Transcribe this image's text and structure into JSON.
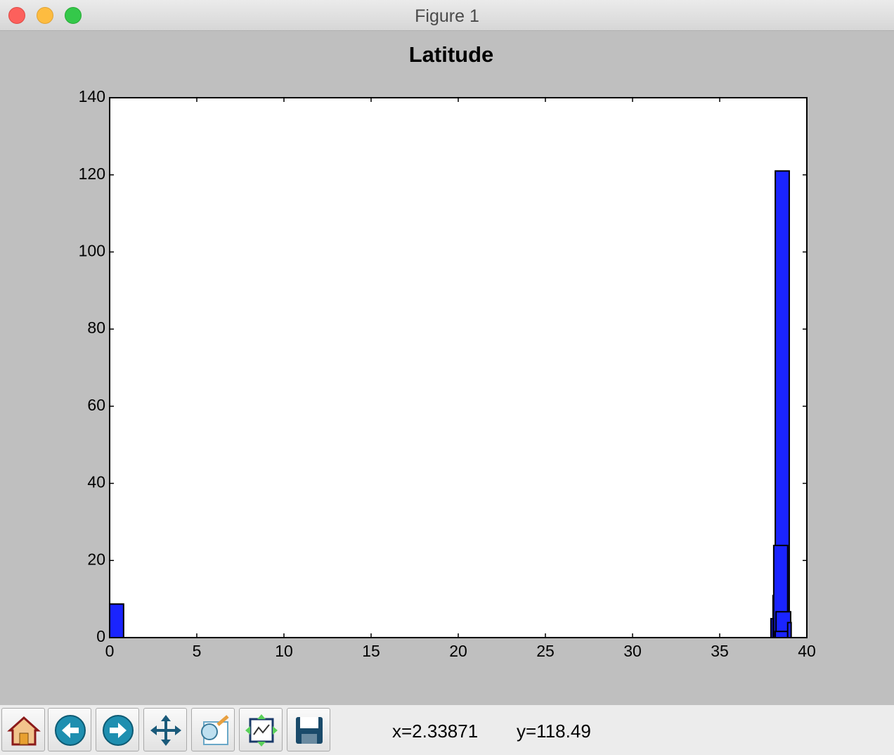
{
  "window": {
    "title": "Figure 1"
  },
  "chart_data": {
    "type": "histogram",
    "title": "Latitude",
    "color": "#1a24ff",
    "xlim": [
      0,
      40
    ],
    "ylim": [
      0,
      140
    ],
    "xticks": [
      0,
      5,
      10,
      15,
      20,
      25,
      30,
      35,
      40
    ],
    "yticks": [
      0,
      20,
      40,
      60,
      80,
      100,
      120,
      140
    ],
    "series": [
      {
        "bins": [
          0,
          0.8
        ],
        "values": [
          8.7
        ]
      },
      {
        "bins": [
          37.94,
          38.15
        ],
        "values": [
          4.9
        ]
      },
      {
        "bins": [
          38.06,
          38.2
        ],
        "values": [
          10.9
        ]
      },
      {
        "bins": [
          38.19,
          38.99
        ],
        "values": [
          121
        ]
      },
      {
        "bins": [
          38.1,
          38.9
        ],
        "values": [
          23.9
        ]
      },
      {
        "bins": [
          38.23,
          39.07
        ],
        "values": [
          6.7
        ]
      },
      {
        "bins": [
          38.19,
          38.9
        ],
        "values": [
          1.6
        ]
      },
      {
        "bins": [
          38.9,
          39.1
        ],
        "values": [
          3.9
        ]
      }
    ]
  },
  "status": {
    "x": "x=2.33871",
    "y": "y=118.49"
  }
}
